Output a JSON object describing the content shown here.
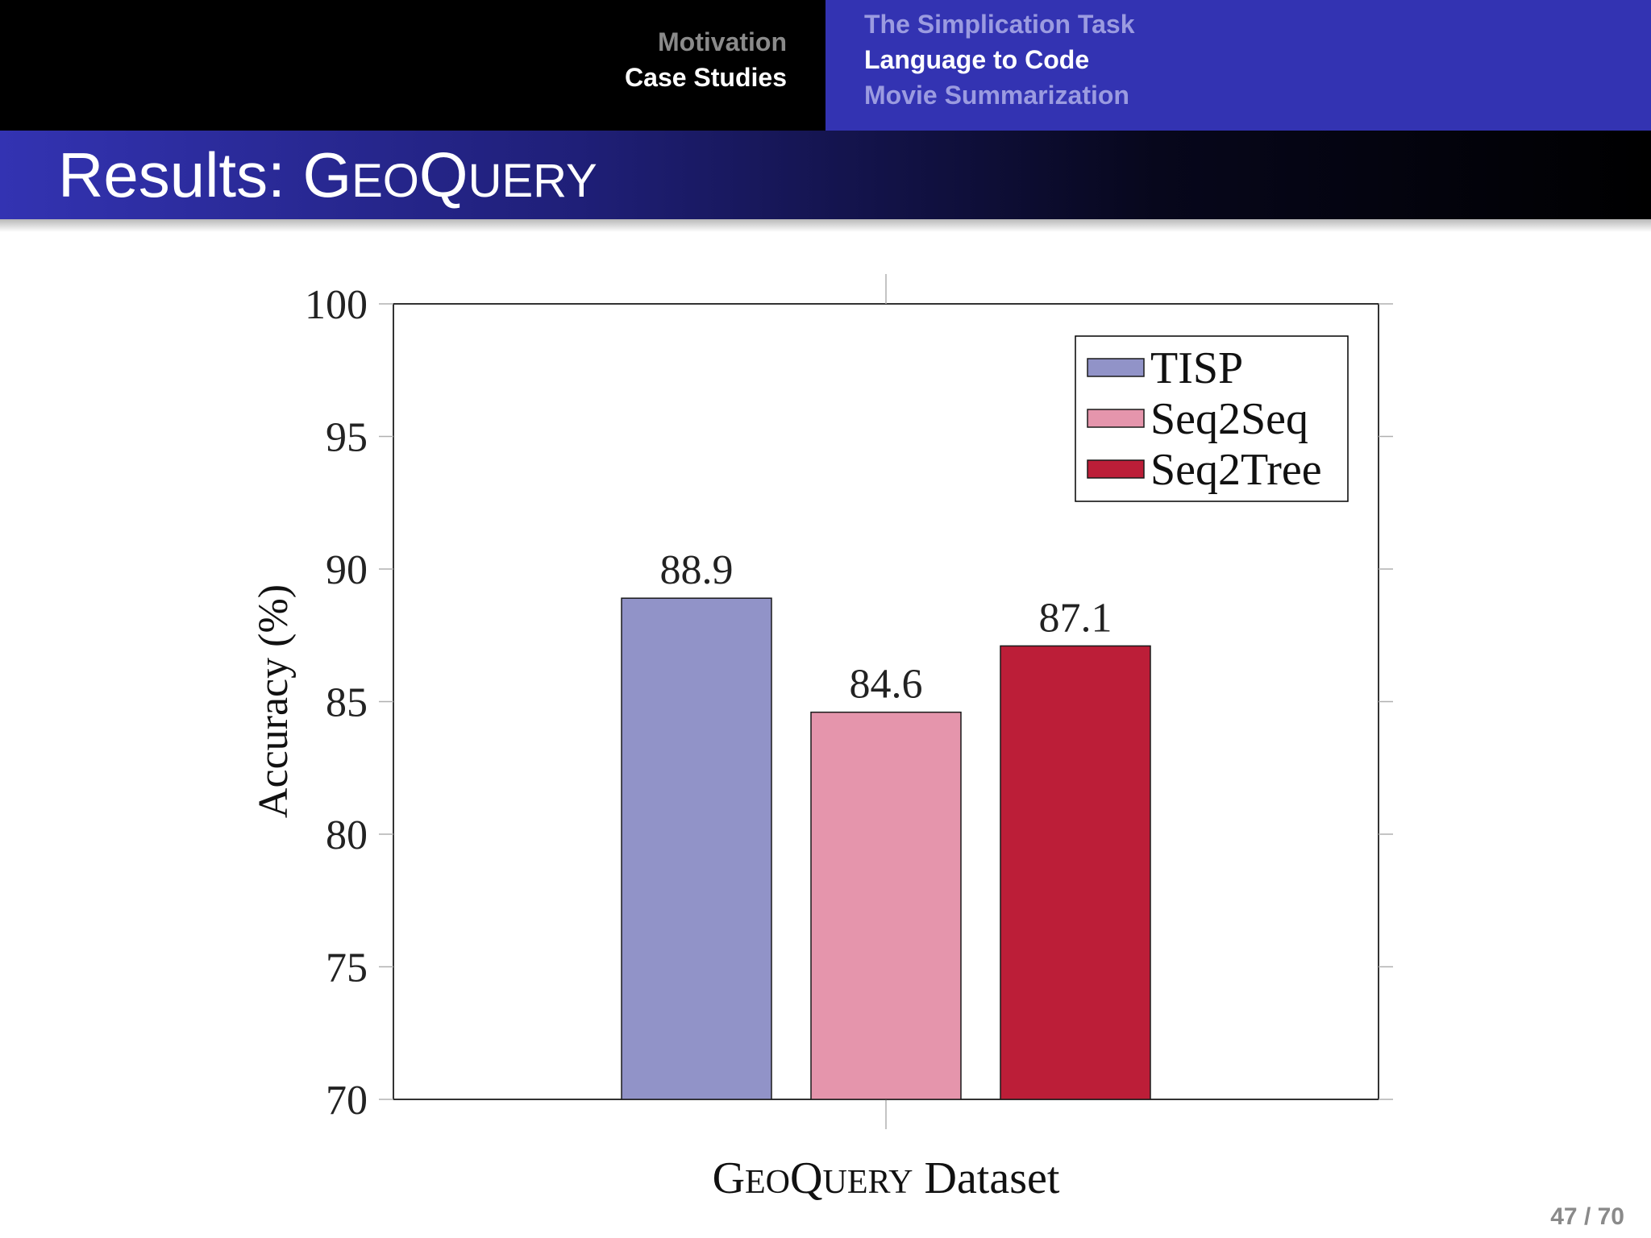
{
  "header": {
    "sections": [
      {
        "label": "Motivation",
        "active": false
      },
      {
        "label": "Case Studies",
        "active": true
      }
    ],
    "subsections": [
      {
        "label": "The Simplication Task",
        "active": false
      },
      {
        "label": "Language to Code",
        "active": true
      },
      {
        "label": "Movie Summarization",
        "active": false
      }
    ]
  },
  "slide": {
    "title_prefix": "Results: ",
    "title_smallcaps": "GeoQuery",
    "page_number": "47 / 70"
  },
  "colors": {
    "nav_bar_right": "#3333b2",
    "nav_bar_left": "#000000",
    "title_bar_start": "#3333b2",
    "title_bar_end": "#000000"
  },
  "chart_data": {
    "type": "bar",
    "categories": [
      "GeoQuery"
    ],
    "series": [
      {
        "name": "TISP",
        "values": [
          88.9
        ],
        "color": "#9193c8"
      },
      {
        "name": "Seq2Seq",
        "values": [
          84.6
        ],
        "color": "#e595ac"
      },
      {
        "name": "Seq2Tree",
        "values": [
          87.1
        ],
        "color": "#bc1e38"
      }
    ],
    "data_labels": [
      "88.9",
      "84.6",
      "87.1"
    ],
    "xlabel_smallcaps": "GeoQuery",
    "xlabel_suffix": " Dataset",
    "ylabel": "Accuracy (%)",
    "ylim": [
      70,
      100
    ],
    "yticks": [
      70,
      75,
      80,
      85,
      90,
      95,
      100
    ],
    "grid": false,
    "legend_position": "top-right"
  }
}
